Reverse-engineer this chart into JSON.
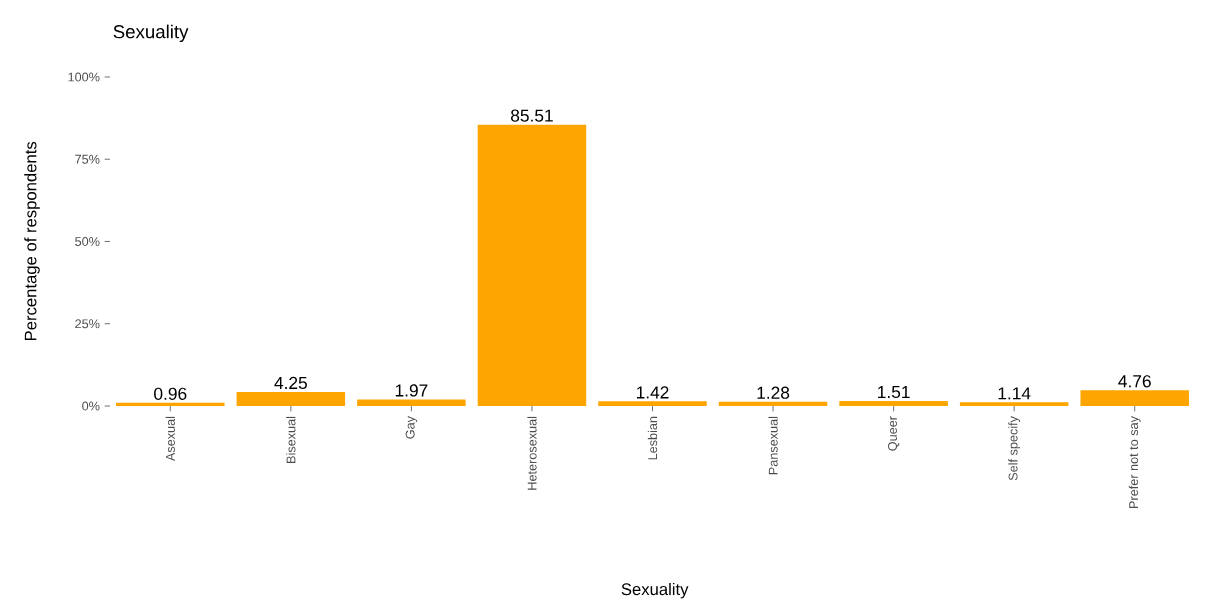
{
  "chart_data": {
    "type": "bar",
    "title": "Sexuality",
    "xlabel": "Sexuality",
    "ylabel": "Percentage of respondents",
    "categories": [
      "Asexual",
      "Bisexual",
      "Gay",
      "Heterosexual",
      "Lesbian",
      "Pansexual",
      "Queer",
      "Self specify",
      "Prefer not to say"
    ],
    "values": [
      0.96,
      4.25,
      1.97,
      85.51,
      1.42,
      1.28,
      1.51,
      1.14,
      4.76
    ],
    "color": "#ffa500",
    "data_labels": true,
    "grid": false,
    "ylim": [
      0,
      100
    ],
    "yticks": [
      {
        "value": 0,
        "label": "0%"
      },
      {
        "value": 25,
        "label": "25%"
      },
      {
        "value": 50,
        "label": "50%"
      },
      {
        "value": 75,
        "label": "75%"
      },
      {
        "value": 100,
        "label": "100%"
      }
    ]
  }
}
